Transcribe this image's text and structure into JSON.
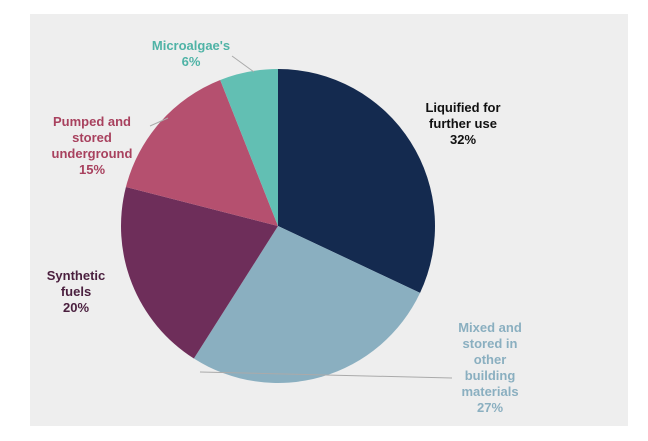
{
  "chart_data": {
    "type": "pie",
    "categories": [
      "Liquified for further use",
      "Mixed and stored in other building materials",
      "Synthetic fuels",
      "Pumped and stored underground",
      "Microalgae's"
    ],
    "values": [
      32,
      27,
      20,
      15,
      6
    ],
    "value_labels": [
      "32%",
      "27%",
      "20%",
      "15%",
      "6%"
    ],
    "colors": [
      "#142a4f",
      "#8aafc0",
      "#6e2e5a",
      "#b5506f",
      "#62bfb3"
    ],
    "label_colors": [
      "#111111",
      "#8aafc0",
      "#4a1f3e",
      "#a8415e",
      "#4fb3a6"
    ]
  }
}
